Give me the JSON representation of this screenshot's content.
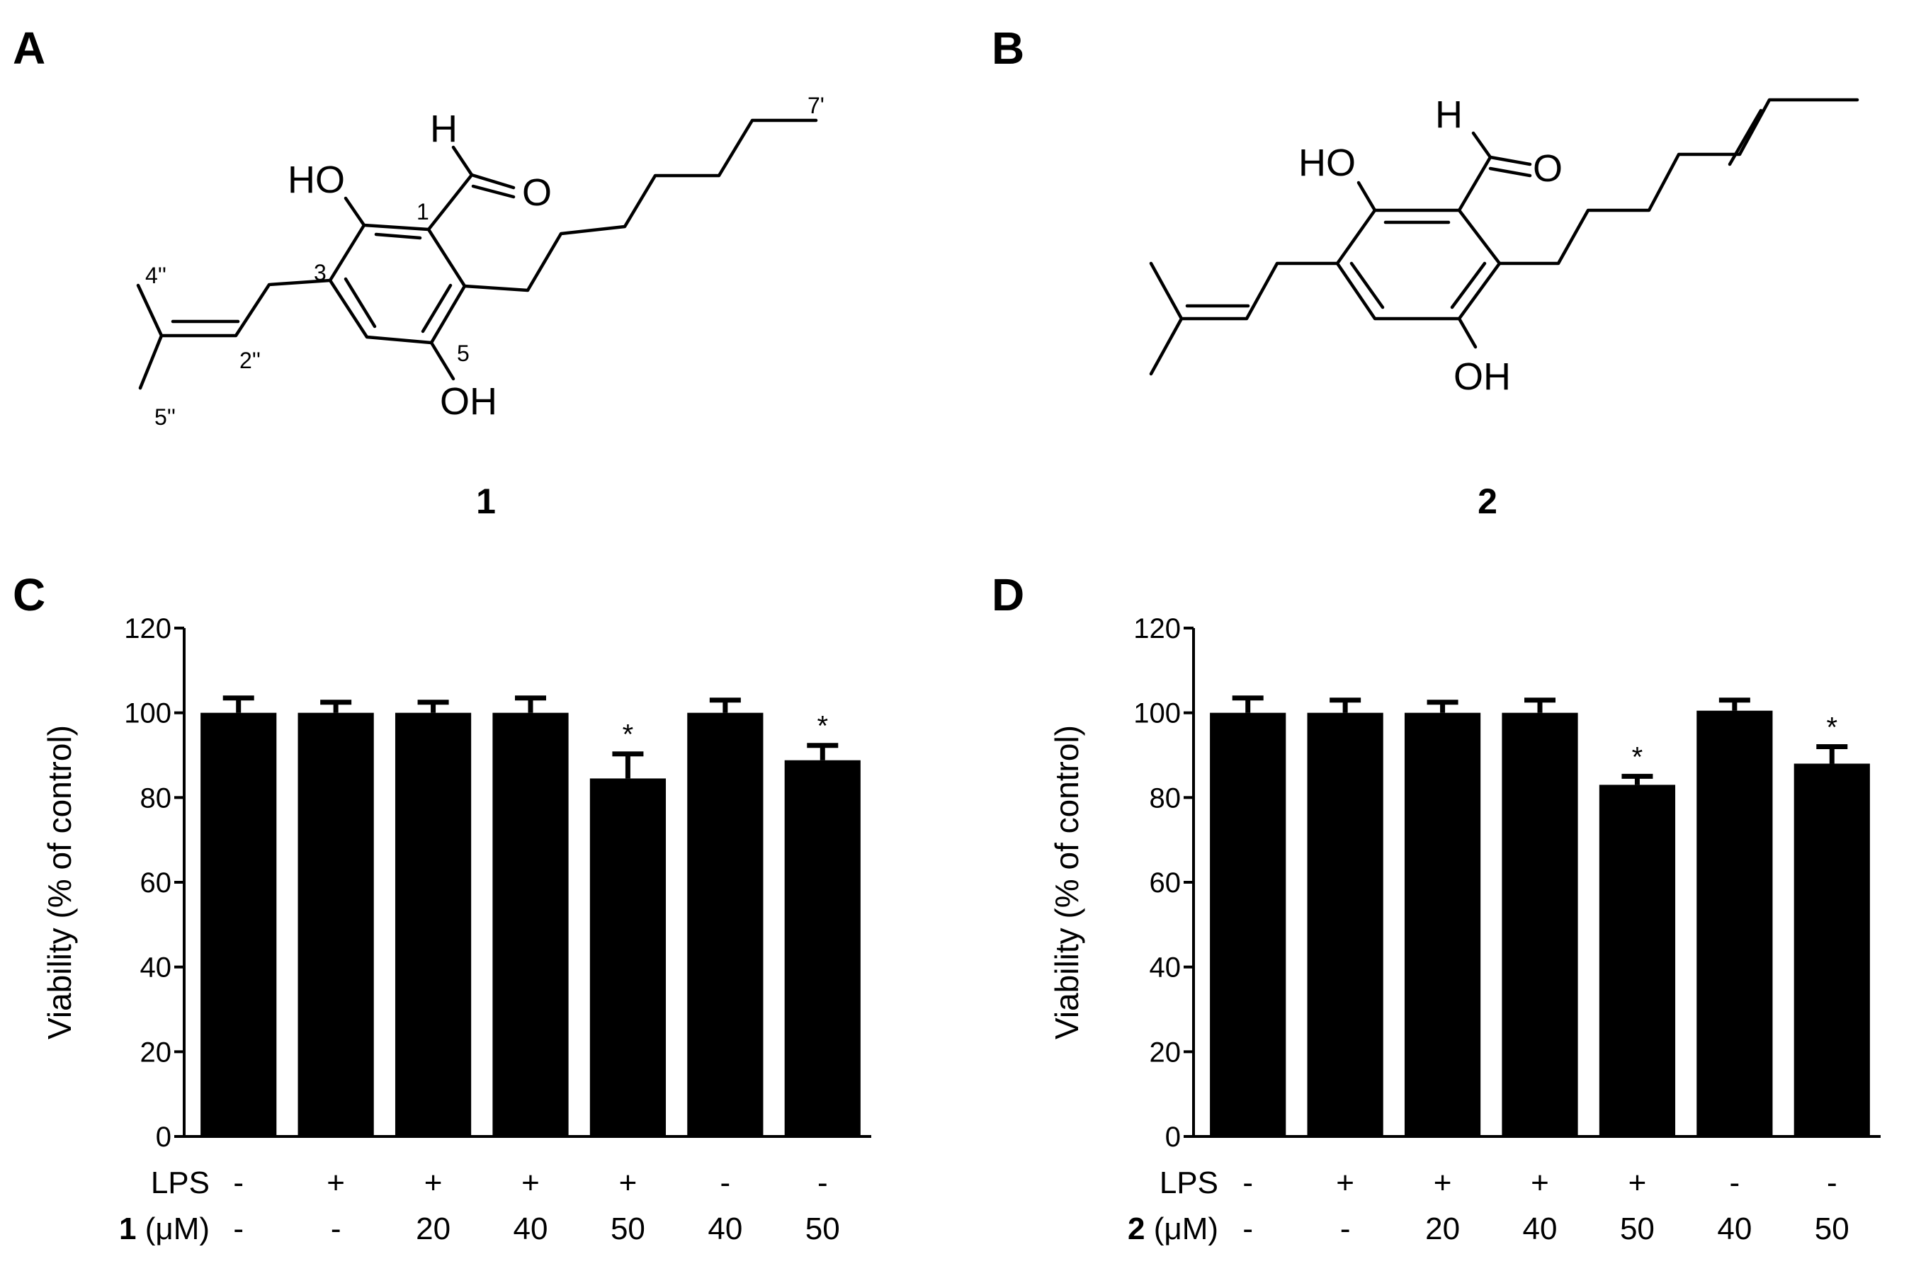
{
  "panels": {
    "A": {
      "letter": "A",
      "compound": "1",
      "atoms": {
        "ho": "HO",
        "h": "H",
        "o": "O",
        "oh": "OH"
      },
      "locants": {
        "c1": "1",
        "c3": "3",
        "c5": "5",
        "c2pp": "2''",
        "c4pp": "4''",
        "c5pp": "5''",
        "c7p": "7'"
      }
    },
    "B": {
      "letter": "B",
      "compound": "2",
      "atoms": {
        "ho": "HO",
        "h": "H",
        "o": "O",
        "oh": "OH"
      }
    },
    "C": {
      "letter": "C"
    },
    "D": {
      "letter": "D"
    }
  },
  "chart_data": [
    {
      "panel": "C",
      "type": "bar",
      "ylabel": "Viability (% of control)",
      "ylim": [
        0,
        120
      ],
      "yticks": [
        "0",
        "20",
        "40",
        "60",
        "80",
        "100",
        "120"
      ],
      "bar_color": "#000000",
      "values": [
        100,
        100,
        100,
        100,
        84.5,
        100,
        88.8
      ],
      "errors": [
        3.5,
        2.5,
        2.5,
        3.5,
        5.8,
        3,
        3.5
      ],
      "significance": [
        "",
        "",
        "",
        "",
        "*",
        "",
        "*"
      ],
      "conditions": [
        {
          "label": "LPS",
          "compound": "",
          "values": [
            "-",
            "+",
            "+",
            "+",
            "+",
            "-",
            "-"
          ]
        },
        {
          "label": "(μM)",
          "compound": "1",
          "values": [
            "-",
            "-",
            "20",
            "40",
            "50",
            "40",
            "50"
          ]
        }
      ]
    },
    {
      "panel": "D",
      "type": "bar",
      "ylabel": "Viability (% of control)",
      "ylim": [
        0,
        120
      ],
      "yticks": [
        "0",
        "20",
        "40",
        "60",
        "80",
        "100",
        "120"
      ],
      "bar_color": "#000000",
      "values": [
        100,
        100,
        100,
        100,
        83,
        100.5,
        88
      ],
      "errors": [
        3.5,
        3,
        2.5,
        3,
        2,
        2.5,
        4
      ],
      "significance": [
        "",
        "",
        "",
        "",
        "*",
        "",
        "*"
      ],
      "conditions": [
        {
          "label": "LPS",
          "compound": "",
          "values": [
            "-",
            "+",
            "+",
            "+",
            "+",
            "-",
            "-"
          ]
        },
        {
          "label": "(μM)",
          "compound": "2",
          "values": [
            "-",
            "-",
            "20",
            "40",
            "50",
            "40",
            "50"
          ]
        }
      ]
    }
  ]
}
